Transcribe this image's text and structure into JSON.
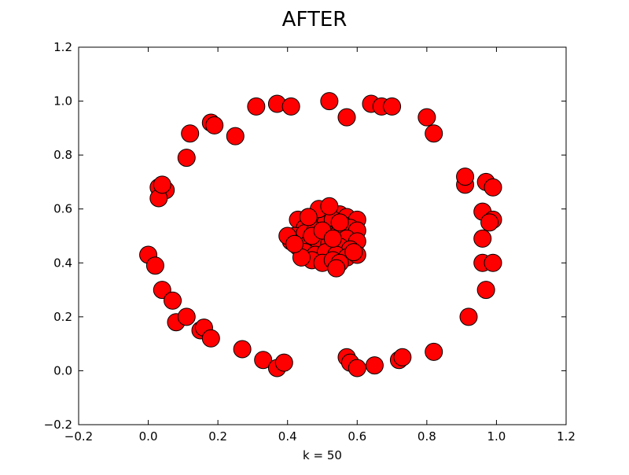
{
  "chart_data": {
    "type": "scatter",
    "title": "AFTER",
    "xlabel": "k = 50",
    "ylabel": "",
    "xlim": [
      -0.2,
      1.2
    ],
    "ylim": [
      -0.2,
      1.2
    ],
    "xticks": [
      "−0.2",
      "0.0",
      "0.2",
      "0.4",
      "0.6",
      "0.8",
      "1.0",
      "1.2"
    ],
    "yticks": [
      "−0.2",
      "0.0",
      "0.2",
      "0.4",
      "0.6",
      "0.8",
      "1.0",
      "1.2"
    ],
    "grid": false,
    "legend": "none",
    "colors": {
      "marker_fill": "#ff0000",
      "marker_edge": "#000000"
    },
    "series": [
      {
        "x": [
          0.31,
          0.37,
          0.41,
          0.52,
          0.57,
          0.64,
          0.67,
          0.7,
          0.8,
          0.82,
          0.18,
          0.19,
          0.12,
          0.11,
          0.25,
          0.03,
          0.05,
          0.03,
          0.04,
          0.0,
          0.02,
          0.04,
          0.07,
          0.08,
          0.11,
          0.15,
          0.16,
          0.18,
          0.27,
          0.33,
          0.37,
          0.39,
          0.57,
          0.58,
          0.6,
          0.65,
          0.72,
          0.73,
          0.82,
          0.91,
          0.91,
          0.97,
          0.99,
          0.96,
          0.99,
          0.98,
          0.96,
          0.96,
          0.99,
          0.97,
          0.92,
          0.43,
          0.46,
          0.5,
          0.52,
          0.55,
          0.57,
          0.6,
          0.45,
          0.48,
          0.51,
          0.53,
          0.56,
          0.58,
          0.6,
          0.42,
          0.45,
          0.48,
          0.51,
          0.54,
          0.57,
          0.6,
          0.43,
          0.46,
          0.49,
          0.52,
          0.55,
          0.58,
          0.45,
          0.48,
          0.51,
          0.54,
          0.57,
          0.6,
          0.47,
          0.5,
          0.53,
          0.55,
          0.47,
          0.5,
          0.53,
          0.41,
          0.44,
          0.54,
          0.59,
          0.49,
          0.52,
          0.46,
          0.4,
          0.42,
          0.55
        ],
        "y": [
          0.98,
          0.99,
          0.98,
          1.0,
          0.94,
          0.99,
          0.98,
          0.98,
          0.94,
          0.88,
          0.92,
          0.91,
          0.88,
          0.79,
          0.87,
          0.68,
          0.67,
          0.64,
          0.69,
          0.43,
          0.39,
          0.3,
          0.26,
          0.18,
          0.2,
          0.15,
          0.16,
          0.12,
          0.08,
          0.04,
          0.01,
          0.03,
          0.05,
          0.03,
          0.01,
          0.02,
          0.04,
          0.05,
          0.07,
          0.69,
          0.72,
          0.7,
          0.68,
          0.59,
          0.56,
          0.55,
          0.49,
          0.4,
          0.4,
          0.3,
          0.2,
          0.56,
          0.57,
          0.58,
          0.59,
          0.58,
          0.57,
          0.56,
          0.53,
          0.54,
          0.55,
          0.56,
          0.54,
          0.53,
          0.52,
          0.5,
          0.51,
          0.52,
          0.51,
          0.5,
          0.49,
          0.48,
          0.46,
          0.47,
          0.48,
          0.47,
          0.46,
          0.45,
          0.44,
          0.43,
          0.44,
          0.43,
          0.42,
          0.43,
          0.41,
          0.4,
          0.41,
          0.4,
          0.5,
          0.52,
          0.49,
          0.48,
          0.42,
          0.38,
          0.44,
          0.6,
          0.61,
          0.57,
          0.5,
          0.47,
          0.55
        ]
      }
    ]
  }
}
